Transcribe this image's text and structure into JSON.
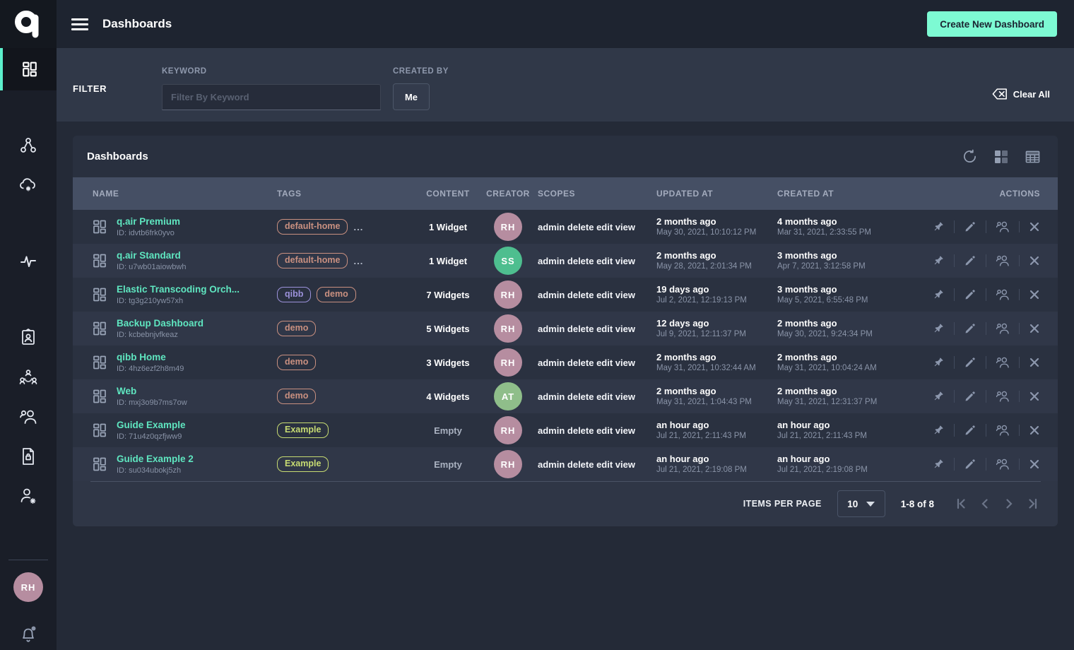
{
  "topbar": {
    "title": "Dashboards",
    "create_button_label": "Create New Dashboard"
  },
  "filter": {
    "label": "FILTER",
    "keyword_label": "KEYWORD",
    "keyword_placeholder": "Filter By Keyword",
    "keyword_value": "",
    "created_by_label": "CREATED BY",
    "created_by_value": "Me",
    "clear_all_label": "Clear All"
  },
  "table": {
    "title": "Dashboards",
    "headers": [
      "NAME",
      "TAGS",
      "CONTENT",
      "CREATOR",
      "SCOPES",
      "UPDATED AT",
      "CREATED AT",
      "ACTIONS"
    ],
    "rows": [
      {
        "name": "q.air Premium",
        "id": "ID: idvtb6frk0yvo",
        "tags": [
          {
            "label": "default-home",
            "color": "salmon"
          }
        ],
        "more_tags": "...",
        "content": "1 Widget",
        "creator": {
          "initials": "RH",
          "color": "mauve"
        },
        "scopes": "admin delete edit view",
        "updated_rel": "2 months ago",
        "updated_abs": "May 30, 2021, 10:10:12 PM",
        "created_rel": "4 months ago",
        "created_abs": "Mar 31, 2021, 2:33:55 PM"
      },
      {
        "name": "q.air Standard",
        "id": "ID: u7wb01aiowbwh",
        "tags": [
          {
            "label": "default-home",
            "color": "salmon"
          }
        ],
        "more_tags": "...",
        "content": "1 Widget",
        "creator": {
          "initials": "SS",
          "color": "green"
        },
        "scopes": "admin delete edit view",
        "updated_rel": "2 months ago",
        "updated_abs": "May 28, 2021, 2:01:34 PM",
        "created_rel": "3 months ago",
        "created_abs": "Apr 7, 2021, 3:12:58 PM"
      },
      {
        "name": "Elastic Transcoding Orch...",
        "id": "ID: tg3g210yw57xh",
        "tags": [
          {
            "label": "qibb",
            "color": "purple"
          },
          {
            "label": "demo",
            "color": "salmon"
          }
        ],
        "more_tags": "",
        "content": "7 Widgets",
        "creator": {
          "initials": "RH",
          "color": "mauve"
        },
        "scopes": "admin delete edit view",
        "updated_rel": "19 days ago",
        "updated_abs": "Jul 2, 2021, 12:19:13 PM",
        "created_rel": "3 months ago",
        "created_abs": "May 5, 2021, 6:55:48 PM"
      },
      {
        "name": "Backup Dashboard",
        "id": "ID: kcbebnjvfkeaz",
        "tags": [
          {
            "label": "demo",
            "color": "salmon"
          }
        ],
        "more_tags": "",
        "content": "5 Widgets",
        "creator": {
          "initials": "RH",
          "color": "mauve"
        },
        "scopes": "admin delete edit view",
        "updated_rel": "12 days ago",
        "updated_abs": "Jul 9, 2021, 12:11:37 PM",
        "created_rel": "2 months ago",
        "created_abs": "May 30, 2021, 9:24:34 PM"
      },
      {
        "name": "qibb Home",
        "id": "ID: 4hz6ezf2h8m49",
        "tags": [
          {
            "label": "demo",
            "color": "salmon"
          }
        ],
        "more_tags": "",
        "content": "3 Widgets",
        "creator": {
          "initials": "RH",
          "color": "mauve"
        },
        "scopes": "admin delete edit view",
        "updated_rel": "2 months ago",
        "updated_abs": "May 31, 2021, 10:32:44 AM",
        "created_rel": "2 months ago",
        "created_abs": "May 31, 2021, 10:04:24 AM"
      },
      {
        "name": "Web",
        "id": "ID: mxj3o9b7ms7ow",
        "tags": [
          {
            "label": "demo",
            "color": "salmon"
          }
        ],
        "more_tags": "",
        "content": "4 Widgets",
        "creator": {
          "initials": "AT",
          "color": "lightgreen"
        },
        "scopes": "admin delete edit view",
        "updated_rel": "2 months ago",
        "updated_abs": "May 31, 2021, 1:04:43 PM",
        "created_rel": "2 months ago",
        "created_abs": "May 31, 2021, 12:31:37 PM"
      },
      {
        "name": "Guide Example",
        "id": "ID: 71u4z0qzfjww9",
        "tags": [
          {
            "label": "Example",
            "color": "yellow"
          }
        ],
        "more_tags": "",
        "content": "Empty",
        "creator": {
          "initials": "RH",
          "color": "mauve"
        },
        "scopes": "admin delete edit view",
        "updated_rel": "an hour ago",
        "updated_abs": "Jul 21, 2021, 2:11:43 PM",
        "created_rel": "an hour ago",
        "created_abs": "Jul 21, 2021, 2:11:43 PM"
      },
      {
        "name": "Guide Example 2",
        "id": "ID: su034ubokj5zh",
        "tags": [
          {
            "label": "Example",
            "color": "yellow"
          }
        ],
        "more_tags": "",
        "content": "Empty",
        "creator": {
          "initials": "RH",
          "color": "mauve"
        },
        "scopes": "admin delete edit view",
        "updated_rel": "an hour ago",
        "updated_abs": "Jul 21, 2021, 2:19:08 PM",
        "created_rel": "an hour ago",
        "created_abs": "Jul 21, 2021, 2:19:08 PM"
      }
    ]
  },
  "pagination": {
    "items_per_page_label": "ITEMS PER PAGE",
    "items_per_page_value": "10",
    "range": "1-8 of  8"
  },
  "sidebar": {
    "user_initials": "RH"
  },
  "colors": {
    "accent": "#7DFAD3",
    "name_link": "#5FE6C0",
    "active_indicator": "#5CF0CC",
    "tags": {
      "salmon": "#C99080",
      "purple": "#9C92DB",
      "yellow": "#C7DB72"
    },
    "avatars": {
      "mauve": "#B68DA0",
      "green": "#4EBE8F",
      "lightgreen": "#8FBE8A"
    }
  }
}
